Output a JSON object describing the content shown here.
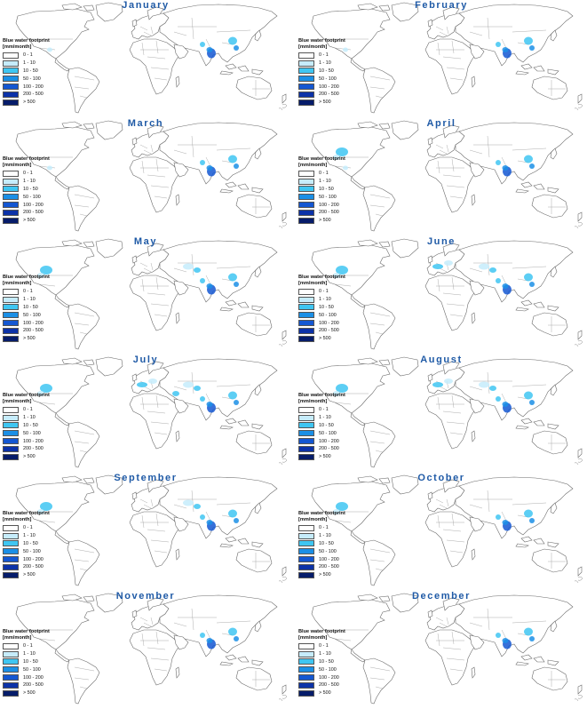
{
  "legend": {
    "title_line1": "Blue water footprint",
    "title_line2": "[mm/month]",
    "classes": [
      {
        "label": "0 - 1",
        "color": "#ffffff"
      },
      {
        "label": "1 - 10",
        "color": "#c6ecfb"
      },
      {
        "label": "10 - 50",
        "color": "#3fc6f2"
      },
      {
        "label": "50 - 100",
        "color": "#1b8fe6"
      },
      {
        "label": "100 - 200",
        "color": "#1457d2"
      },
      {
        "label": "200 - 500",
        "color": "#0c32a8"
      },
      {
        "label": "> 500",
        "color": "#061c6a"
      }
    ]
  },
  "months": [
    {
      "name": "January",
      "hotspots": [
        "india",
        "china-east",
        "mexico",
        "pakistan"
      ]
    },
    {
      "name": "February",
      "hotspots": [
        "india",
        "china-east",
        "pakistan",
        "mexico"
      ]
    },
    {
      "name": "March",
      "hotspots": [
        "india",
        "pakistan",
        "china-east",
        "mexico"
      ]
    },
    {
      "name": "April",
      "hotspots": [
        "india",
        "pakistan",
        "china-east",
        "usa-central",
        "mexico"
      ]
    },
    {
      "name": "May",
      "hotspots": [
        "india",
        "pakistan",
        "china-east",
        "usa-central",
        "central-asia"
      ]
    },
    {
      "name": "June",
      "hotspots": [
        "india",
        "pakistan",
        "china-east",
        "usa-central",
        "central-asia",
        "europe-south"
      ]
    },
    {
      "name": "July",
      "hotspots": [
        "usa-central",
        "europe-south",
        "central-asia",
        "india",
        "pakistan",
        "china-east",
        "middle-east"
      ]
    },
    {
      "name": "August",
      "hotspots": [
        "usa-central",
        "europe-south",
        "central-asia",
        "india",
        "pakistan",
        "china-east"
      ]
    },
    {
      "name": "September",
      "hotspots": [
        "usa-central",
        "india",
        "pakistan",
        "china-east",
        "central-asia"
      ]
    },
    {
      "name": "October",
      "hotspots": [
        "india",
        "china-east",
        "pakistan",
        "usa-central"
      ]
    },
    {
      "name": "November",
      "hotspots": [
        "india",
        "china-east",
        "pakistan"
      ]
    },
    {
      "name": "December",
      "hotspots": [
        "india",
        "china-east",
        "pakistan"
      ]
    }
  ]
}
